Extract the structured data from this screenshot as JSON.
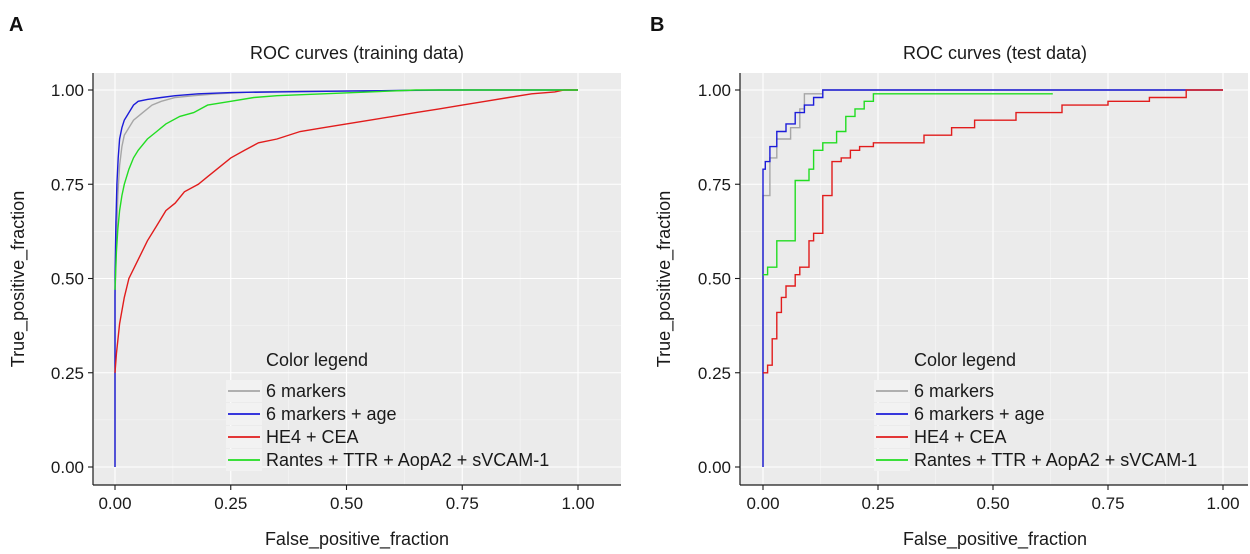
{
  "chart_data": [
    {
      "panel": "A",
      "type": "line",
      "title": "ROC curves (training data)",
      "xlabel": "False_positive_fraction",
      "ylabel": "True_positive_fraction",
      "xlim": [
        0,
        1
      ],
      "ylim": [
        0,
        1
      ],
      "xticks": [
        "0.00",
        "0.25",
        "0.50",
        "0.75",
        "1.00"
      ],
      "yticks": [
        "0.00",
        "0.25",
        "0.50",
        "0.75",
        "1.00"
      ],
      "grid": true,
      "legend": {
        "title": "Color legend",
        "placement": "bottom-right"
      },
      "series": [
        {
          "name": "6 markers",
          "color": "#a6a6a6",
          "x": [
            0,
            0,
            0.003,
            0.006,
            0.01,
            0.015,
            0.02,
            0.03,
            0.04,
            0.06,
            0.08,
            0.1,
            0.13,
            0.17,
            0.22,
            0.3,
            0.4,
            0.55,
            0.75,
            1
          ],
          "y": [
            0,
            0.45,
            0.6,
            0.72,
            0.8,
            0.85,
            0.88,
            0.9,
            0.92,
            0.94,
            0.96,
            0.97,
            0.98,
            0.985,
            0.99,
            0.995,
            0.997,
            0.998,
            1.0,
            1.0
          ]
        },
        {
          "name": "6 markers + age",
          "color": "#1c1cd9",
          "x": [
            0,
            0,
            0.002,
            0.004,
            0.007,
            0.01,
            0.015,
            0.02,
            0.03,
            0.04,
            0.05,
            0.07,
            0.1,
            0.13,
            0.18,
            0.25,
            0.35,
            0.5,
            0.7,
            1
          ],
          "y": [
            0,
            0.5,
            0.65,
            0.75,
            0.82,
            0.87,
            0.9,
            0.92,
            0.94,
            0.96,
            0.97,
            0.975,
            0.98,
            0.985,
            0.99,
            0.993,
            0.995,
            0.997,
            1.0,
            1.0
          ]
        },
        {
          "name": "HE4 + CEA",
          "color": "#e11c1c",
          "x": [
            0,
            0.003,
            0.01,
            0.02,
            0.03,
            0.05,
            0.07,
            0.09,
            0.11,
            0.13,
            0.15,
            0.18,
            0.2,
            0.22,
            0.25,
            0.28,
            0.31,
            0.35,
            0.4,
            0.45,
            0.5,
            0.55,
            0.6,
            0.65,
            0.7,
            0.75,
            0.8,
            0.85,
            0.9,
            0.95,
            0.97,
            1
          ],
          "y": [
            0.25,
            0.3,
            0.38,
            0.45,
            0.5,
            0.55,
            0.6,
            0.64,
            0.68,
            0.7,
            0.73,
            0.75,
            0.77,
            0.79,
            0.82,
            0.84,
            0.86,
            0.87,
            0.89,
            0.9,
            0.91,
            0.92,
            0.93,
            0.94,
            0.95,
            0.96,
            0.97,
            0.98,
            0.99,
            0.995,
            1.0,
            1.0
          ]
        },
        {
          "name": "Rantes + TTR + AopA2 + sVCAM-1",
          "color": "#22dd22",
          "x": [
            0,
            0.003,
            0.006,
            0.01,
            0.015,
            0.02,
            0.03,
            0.04,
            0.05,
            0.07,
            0.09,
            0.11,
            0.14,
            0.17,
            0.2,
            0.25,
            0.3,
            0.35,
            0.45,
            0.55,
            0.65,
            0.8,
            1
          ],
          "y": [
            0.47,
            0.57,
            0.63,
            0.68,
            0.72,
            0.75,
            0.79,
            0.82,
            0.84,
            0.87,
            0.89,
            0.91,
            0.93,
            0.94,
            0.96,
            0.97,
            0.98,
            0.985,
            0.99,
            0.995,
            1.0,
            1.0,
            1.0
          ]
        }
      ]
    },
    {
      "panel": "B",
      "type": "line",
      "title": "ROC curves (test data)",
      "xlabel": "False_positive_fraction",
      "ylabel": "True_positive_fraction",
      "xlim": [
        0,
        1
      ],
      "ylim": [
        0,
        1
      ],
      "xticks": [
        "0.00",
        "0.25",
        "0.50",
        "0.75",
        "1.00"
      ],
      "yticks": [
        "0.00",
        "0.25",
        "0.50",
        "0.75",
        "1.00"
      ],
      "grid": true,
      "legend": {
        "title": "Color legend",
        "placement": "bottom-right"
      },
      "series": [
        {
          "name": "6 markers",
          "color": "#a6a6a6",
          "x": [
            0,
            0,
            0.015,
            0.015,
            0.03,
            0.03,
            0.06,
            0.06,
            0.08,
            0.08,
            0.09,
            0.09,
            0.13,
            0.13,
            1
          ],
          "y": [
            0,
            0.72,
            0.72,
            0.82,
            0.82,
            0.87,
            0.87,
            0.9,
            0.9,
            0.95,
            0.95,
            0.99,
            0.99,
            1.0,
            1.0
          ]
        },
        {
          "name": "6 markers + age",
          "color": "#1c1cd9",
          "x": [
            0,
            0,
            0.005,
            0.005,
            0.015,
            0.015,
            0.03,
            0.03,
            0.05,
            0.05,
            0.07,
            0.07,
            0.09,
            0.09,
            0.11,
            0.11,
            0.13,
            0.13,
            1
          ],
          "y": [
            0,
            0.79,
            0.79,
            0.81,
            0.81,
            0.85,
            0.85,
            0.89,
            0.89,
            0.91,
            0.91,
            0.94,
            0.94,
            0.96,
            0.96,
            0.98,
            0.98,
            1.0,
            1.0
          ]
        },
        {
          "name": "HE4 + CEA",
          "color": "#e11c1c",
          "x": [
            0,
            0.01,
            0.01,
            0.02,
            0.02,
            0.03,
            0.03,
            0.04,
            0.04,
            0.05,
            0.05,
            0.07,
            0.07,
            0.08,
            0.08,
            0.1,
            0.1,
            0.11,
            0.11,
            0.13,
            0.13,
            0.15,
            0.15,
            0.17,
            0.17,
            0.19,
            0.19,
            0.21,
            0.21,
            0.24,
            0.24,
            0.35,
            0.35,
            0.41,
            0.41,
            0.46,
            0.46,
            0.55,
            0.55,
            0.65,
            0.65,
            0.75,
            0.75,
            0.84,
            0.84,
            0.92,
            0.92,
            1
          ],
          "y": [
            0.25,
            0.25,
            0.27,
            0.27,
            0.34,
            0.34,
            0.41,
            0.41,
            0.45,
            0.45,
            0.48,
            0.48,
            0.51,
            0.51,
            0.53,
            0.53,
            0.6,
            0.6,
            0.62,
            0.62,
            0.72,
            0.72,
            0.81,
            0.81,
            0.82,
            0.82,
            0.84,
            0.84,
            0.85,
            0.85,
            0.86,
            0.86,
            0.88,
            0.88,
            0.9,
            0.9,
            0.92,
            0.92,
            0.94,
            0.94,
            0.96,
            0.96,
            0.97,
            0.97,
            0.98,
            0.98,
            1.0,
            1.0
          ]
        },
        {
          "name": "Rantes + TTR + AopA2 + sVCAM-1",
          "color": "#22dd22",
          "x": [
            0,
            0.01,
            0.01,
            0.03,
            0.03,
            0.07,
            0.07,
            0.1,
            0.1,
            0.11,
            0.11,
            0.13,
            0.13,
            0.16,
            0.16,
            0.18,
            0.18,
            0.2,
            0.2,
            0.22,
            0.22,
            0.24,
            0.24,
            0.63
          ],
          "y": [
            0.51,
            0.51,
            0.53,
            0.53,
            0.6,
            0.6,
            0.76,
            0.76,
            0.79,
            0.79,
            0.84,
            0.84,
            0.86,
            0.86,
            0.89,
            0.89,
            0.93,
            0.93,
            0.95,
            0.95,
            0.97,
            0.97,
            0.99,
            0.99
          ]
        }
      ]
    }
  ],
  "panel_labels": [
    "A",
    "B"
  ]
}
